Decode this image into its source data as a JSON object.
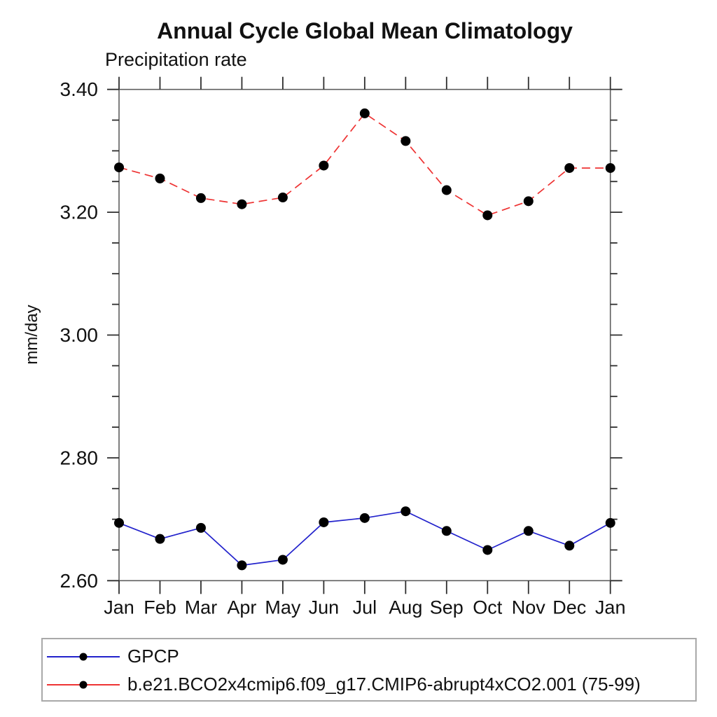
{
  "title": "Annual Cycle Global Mean Climatology",
  "subtitle": "Precipitation rate",
  "ylabel": "mm/day",
  "legend": {
    "items": [
      {
        "label": "GPCP"
      },
      {
        "label": "b.e21.BCO2x4cmip6.f09_g17.CMIP6-abrupt4xCO2.001 (75-99)"
      }
    ]
  },
  "chart_data": {
    "type": "line",
    "title": "Annual Cycle Global Mean Climatology",
    "subtitle": "Precipitation rate",
    "xlabel": "",
    "ylabel": "mm/day",
    "categories": [
      "Jan",
      "Feb",
      "Mar",
      "Apr",
      "May",
      "Jun",
      "Jul",
      "Aug",
      "Sep",
      "Oct",
      "Nov",
      "Dec",
      "Jan"
    ],
    "series": [
      {
        "name": "GPCP",
        "color": "#2222cc",
        "style": "solid",
        "dash": "",
        "marker": "circle",
        "marker_color": "#000000",
        "values": [
          2.694,
          2.668,
          2.686,
          2.625,
          2.634,
          2.695,
          2.702,
          2.713,
          2.681,
          2.65,
          2.681,
          2.657,
          2.694
        ]
      },
      {
        "name": "b.e21.BCO2x4cmip6.f09_g17.CMIP6-abrupt4xCO2.001 (75-99)",
        "color": "#ee3333",
        "style": "dashed",
        "dash": "12,7",
        "marker": "circle",
        "marker_color": "#000000",
        "values": [
          3.273,
          3.255,
          3.223,
          3.213,
          3.224,
          3.276,
          3.361,
          3.316,
          3.236,
          3.195,
          3.218,
          3.272,
          3.272
        ]
      }
    ],
    "ylim": [
      2.6,
      3.4
    ],
    "y_major_tick_labels": [
      "2.60",
      "2.80",
      "3.00",
      "3.20",
      "3.40"
    ],
    "y_major_step": 0.2,
    "y_minor_step": 0.05,
    "grid": "off",
    "legend_position": "bottom-left-box"
  }
}
